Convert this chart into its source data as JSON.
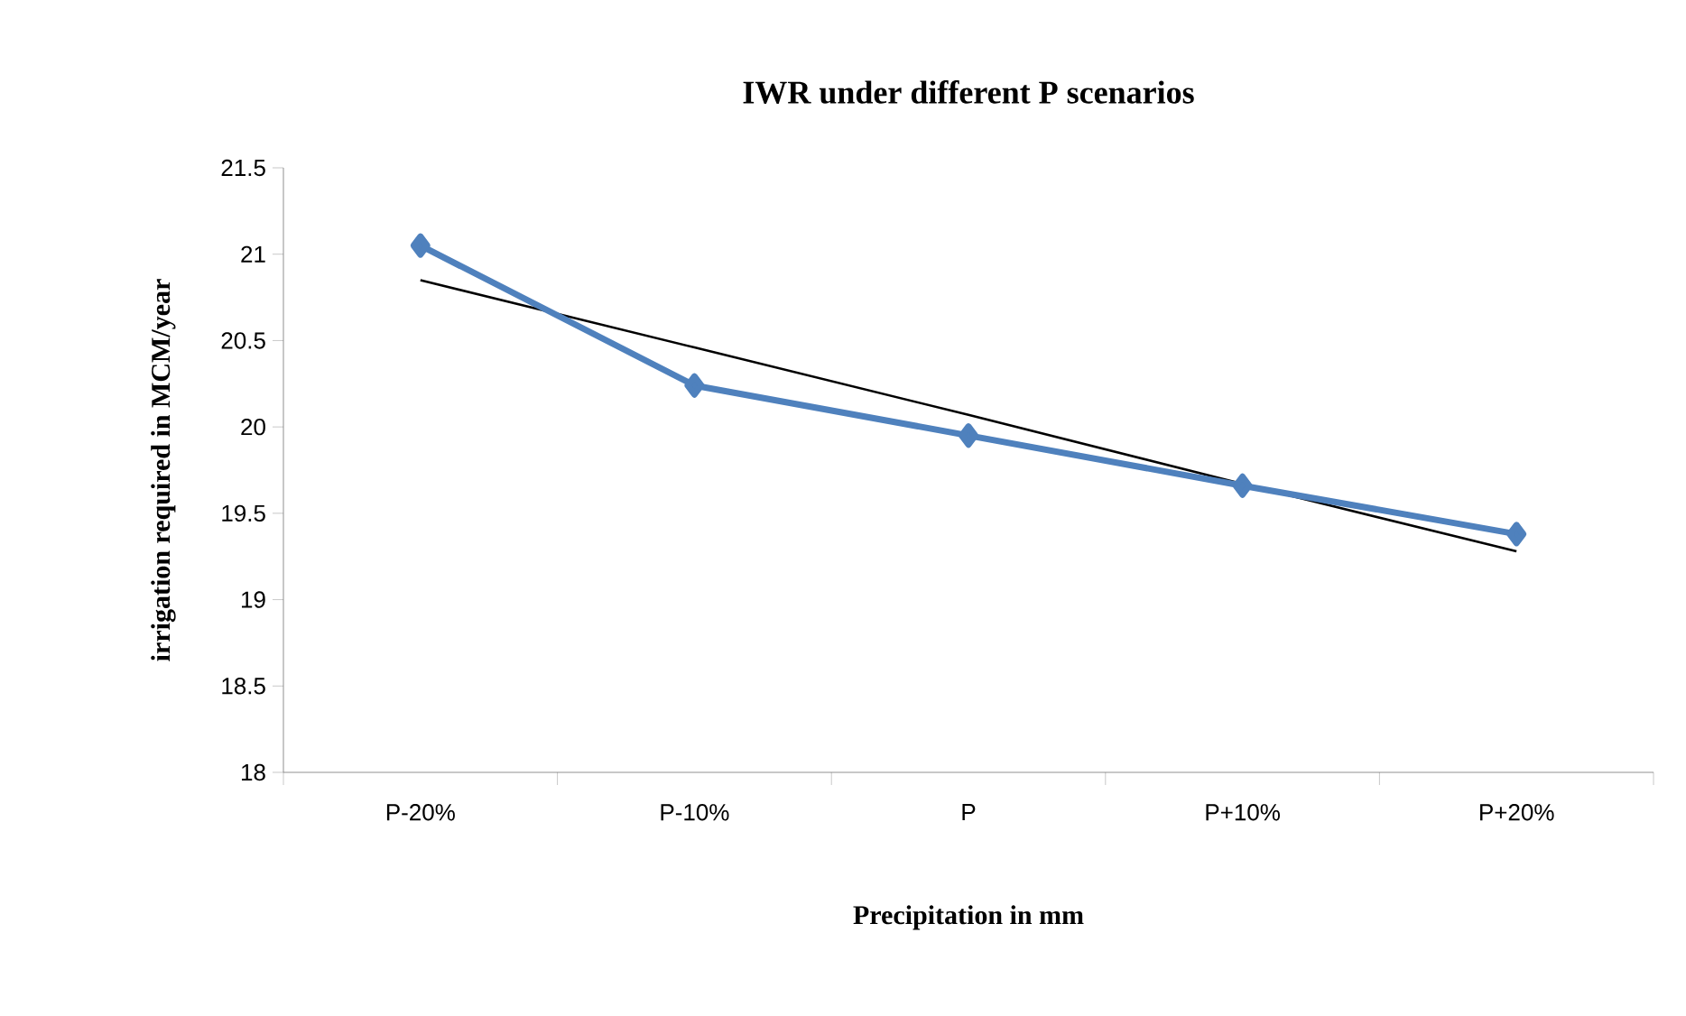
{
  "chart_data": {
    "type": "line",
    "title": "IWR under different P scenarios",
    "xlabel": "Precipitation in mm",
    "ylabel": "irrigation required in MCM/year",
    "categories": [
      "P-20%",
      "P-10%",
      "P",
      "P+10%",
      "P+20%"
    ],
    "series": [
      {
        "color": "#4f81bd",
        "values": [
          21.05,
          20.24,
          19.95,
          19.66,
          19.38
        ],
        "marker": "diamond"
      },
      {
        "color": "#000000",
        "values": [
          20.85,
          20.46,
          20.07,
          19.67,
          19.28
        ],
        "marker": "none"
      }
    ],
    "ylim": [
      18,
      21.5
    ],
    "yticks": [
      18,
      18.5,
      19,
      19.5,
      20,
      20.5,
      21,
      21.5
    ],
    "grid": false,
    "line_style": "solid"
  }
}
